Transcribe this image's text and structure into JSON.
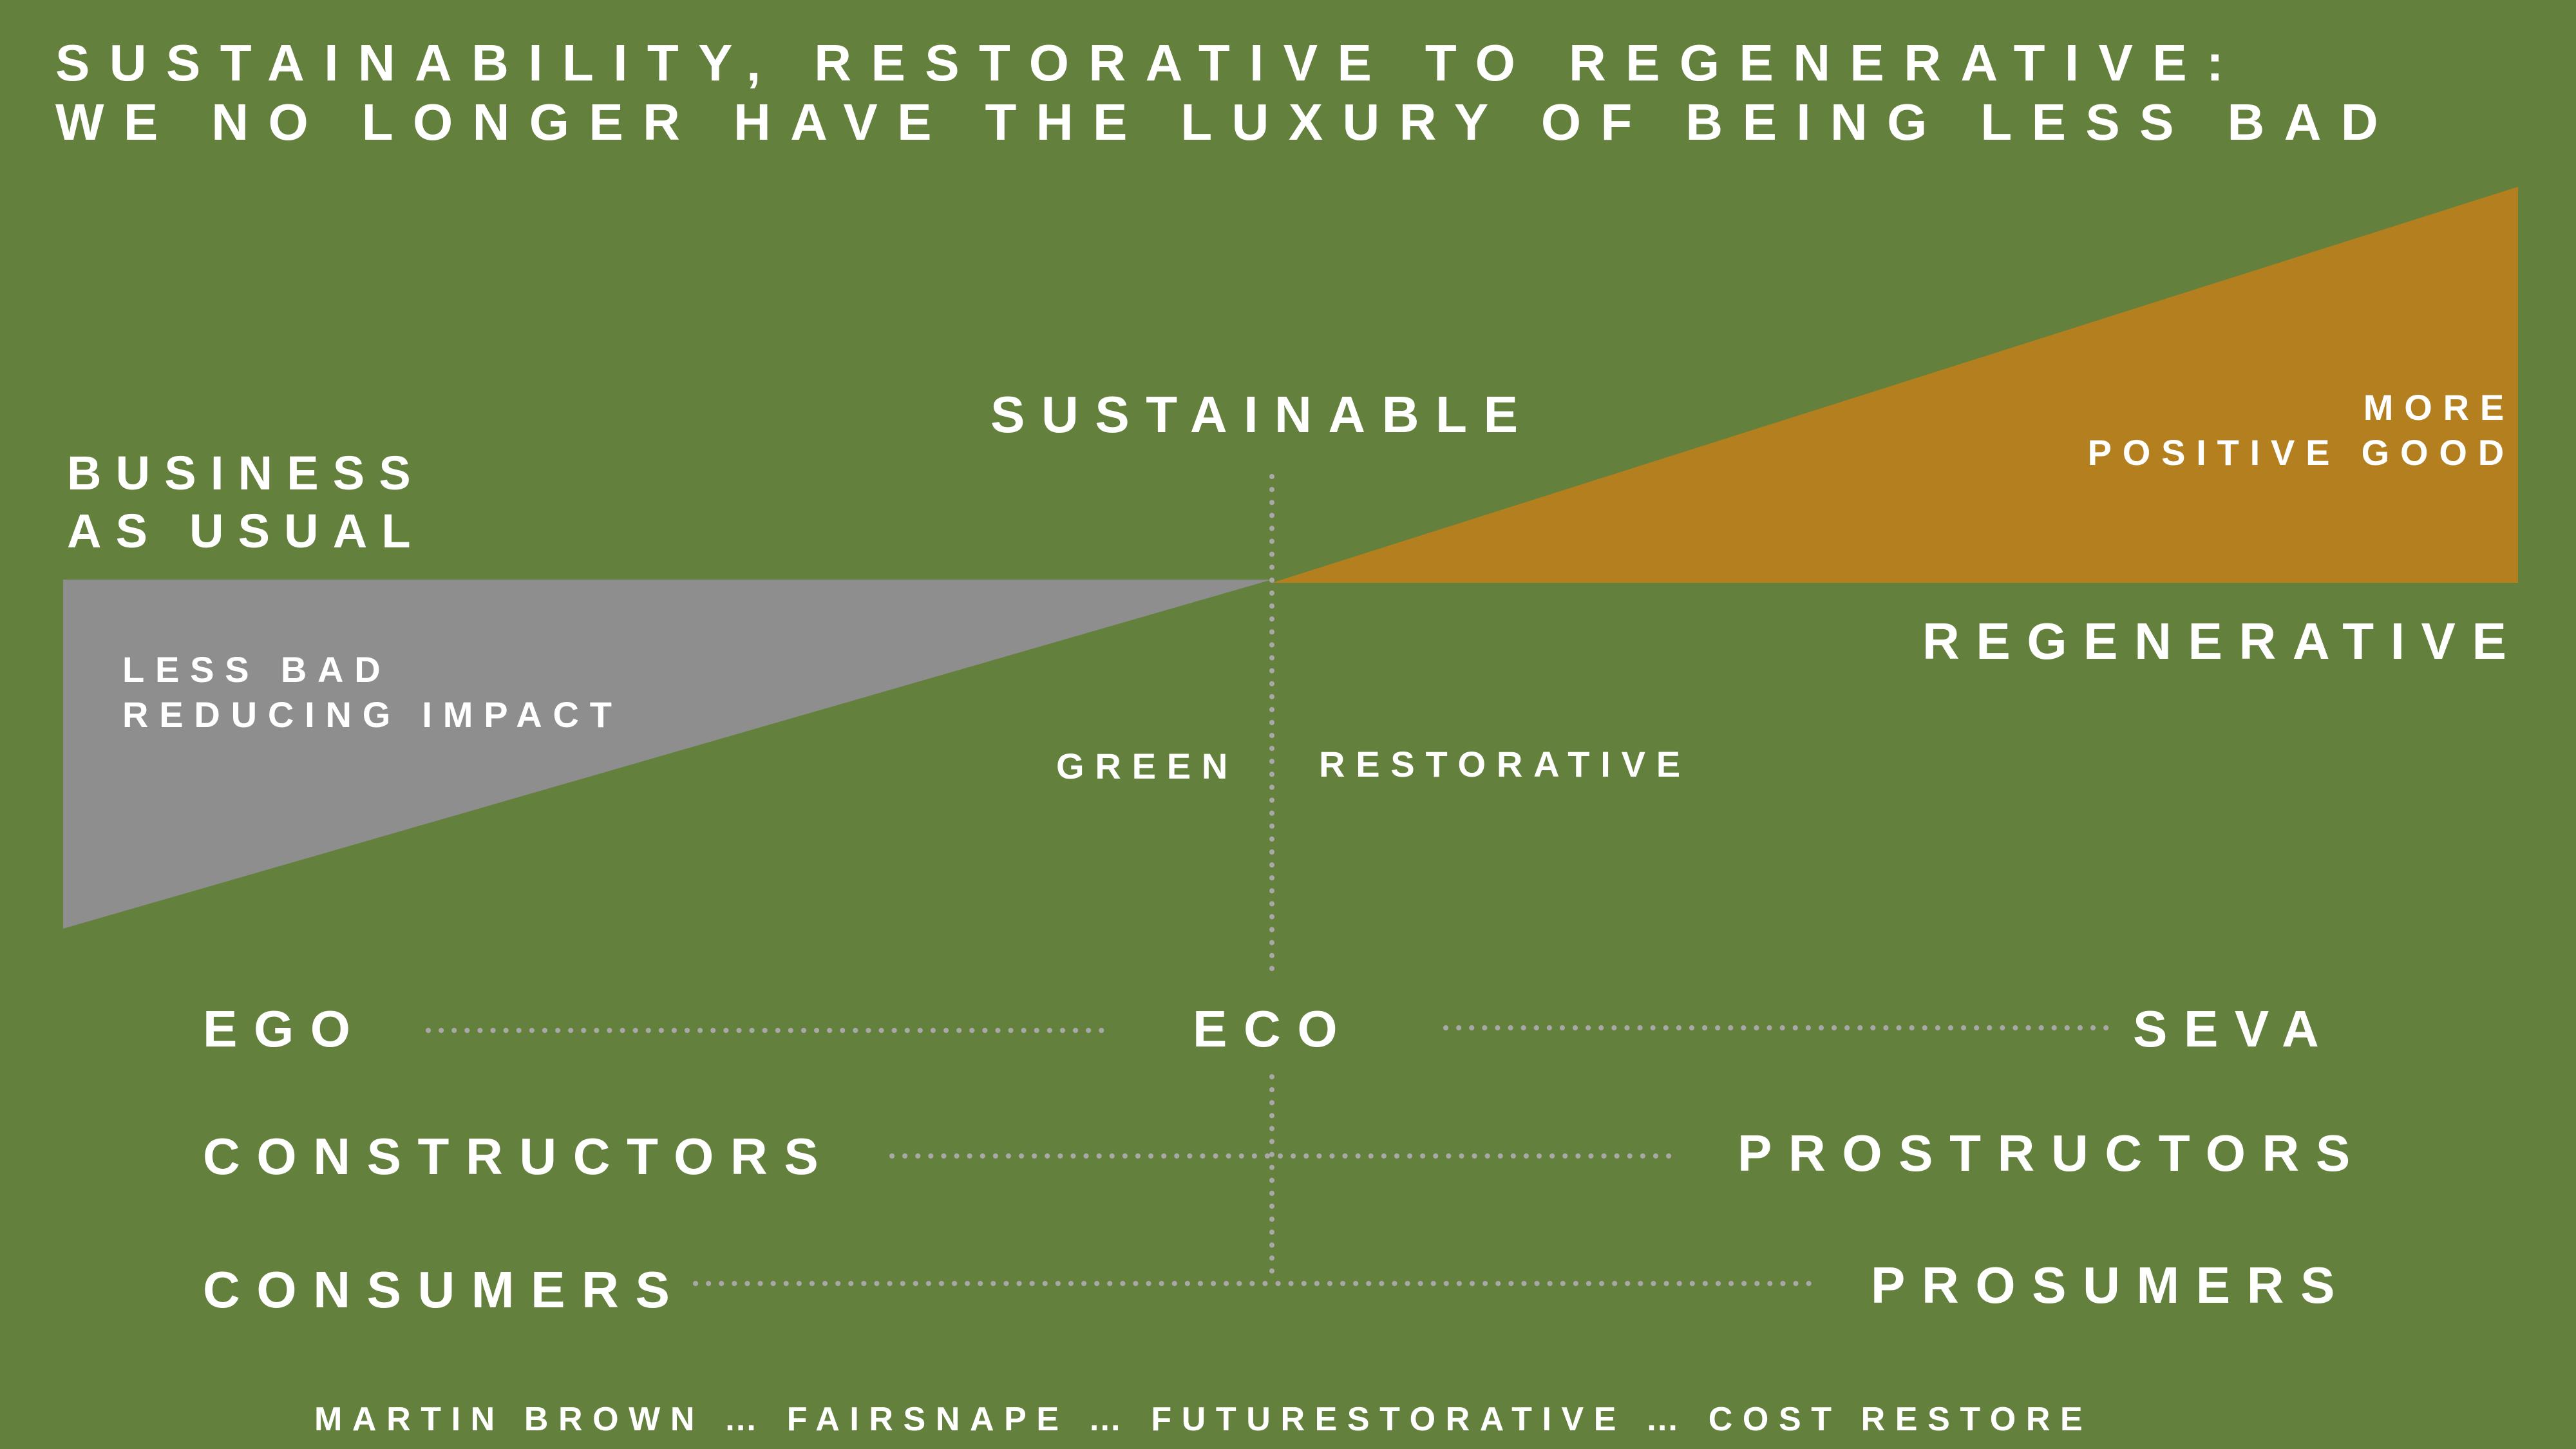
{
  "title": {
    "line1": "SUSTAINABILITY, RESTORATIVE TO REGENERATIVE:",
    "line2": "WE NO LONGER HAVE THE LUXURY OF BEING LESS BAD"
  },
  "labels": {
    "business_line1": "BUSINESS",
    "business_line2": "AS USUAL",
    "sustainable": "SUSTAINABLE",
    "more": "MORE",
    "positive_good": "POSITIVE GOOD",
    "regenerative": "REGENERATIVE",
    "less_bad": "LESS BAD",
    "reducing_impact": "REDUCING IMPACT",
    "green": "GREEN",
    "restorative": "RESTORATIVE"
  },
  "rows": {
    "ego": "EGO",
    "eco": "ECO",
    "seva": "SEVA",
    "constructors": "CONSTRUCTORS",
    "prostructors": "PROSTRUCTORS",
    "consumers": "CONSUMERS",
    "prosumers": "PROSUMERS"
  },
  "footer": "MARTIN BROWN … FAIRSNAPE … FUTURESTORATIVE … COST RESTORE",
  "colors": {
    "background": "#64803d",
    "negative_wedge": "#8e8e8e",
    "positive_wedge": "#b47f1f",
    "dotted_line": "#a8a8a8",
    "text": "#ffffff"
  }
}
